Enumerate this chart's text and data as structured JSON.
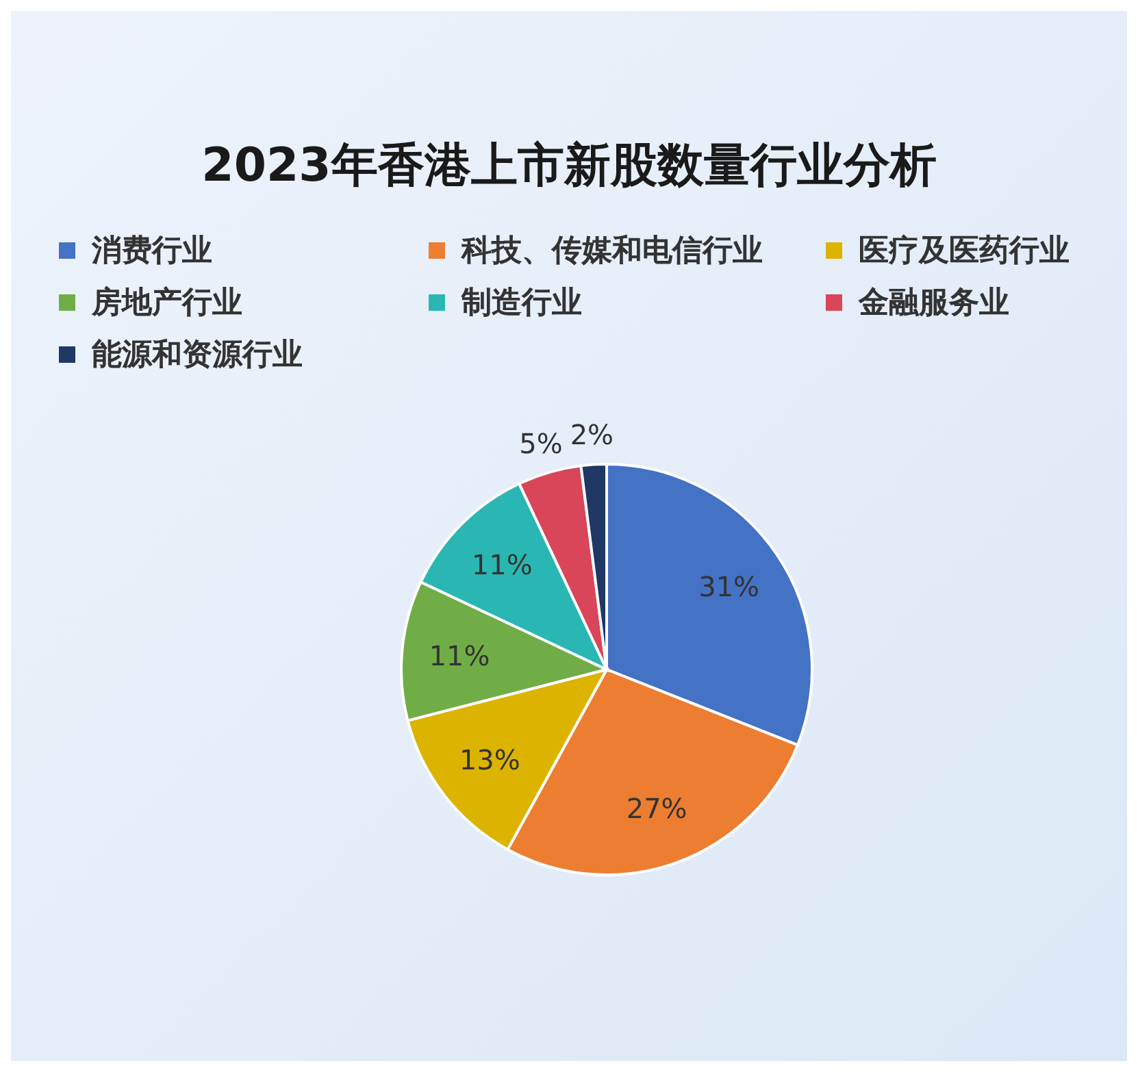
{
  "chart_data": {
    "type": "pie",
    "title": "2023年香港上市新股数量行业分析",
    "categories": [
      "消费行业",
      "科技、传媒和电信行业",
      "医疗及医药行业",
      "房地产行业",
      "制造行业",
      "金融服务业",
      "能源和资源行业"
    ],
    "values": [
      31,
      27,
      13,
      11,
      11,
      5,
      2
    ],
    "colors": [
      "#4472c4",
      "#ed7d31",
      "#dcb400",
      "#70ad47",
      "#2ab7b3",
      "#d9465a",
      "#1f3864"
    ],
    "value_labels": [
      "31%",
      "27%",
      "13%",
      "11%",
      "11%",
      "5%",
      "2%"
    ],
    "legend": "top"
  }
}
